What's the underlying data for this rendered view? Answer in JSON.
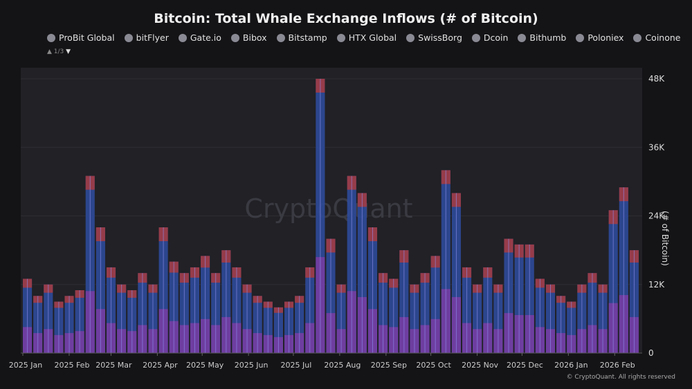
{
  "chart_data": {
    "type": "bar",
    "title": "Bitcoin: Total Whale Exchange Inflows (# of Bitcoin)",
    "ylabel": "(# of Bitcoin)",
    "xlabel": "",
    "ylim": [
      0,
      48000
    ],
    "yticks": [
      "0",
      "12K",
      "24K",
      "36K",
      "48K"
    ],
    "ytick_values": [
      0,
      12000,
      24000,
      36000,
      48000
    ],
    "xticks": [
      "2025 Jan",
      "2025 Feb",
      "2025 Mar",
      "2025 Apr",
      "2025 May",
      "2025 Jun",
      "2025 Jul",
      "2025 Aug",
      "2025 Sep",
      "2025 Oct",
      "2025 Nov",
      "2025 Dec",
      "2026 Jan",
      "2026 Feb"
    ],
    "xtick_dates": [
      "2025-01-01",
      "2025-02-01",
      "2025-03-01",
      "2025-04-01",
      "2025-05-01",
      "2025-06-01",
      "2025-07-01",
      "2025-08-01",
      "2025-09-01",
      "2025-10-01",
      "2025-11-01",
      "2025-12-01",
      "2026-01-01",
      "2026-02-01"
    ],
    "xlim": [
      "2025-01-01",
      "2026-02-18"
    ],
    "grid": true,
    "stacked": true,
    "legend": {
      "position": "top",
      "entries": [
        "ProBit Global",
        "bitFlyer",
        "Gate.io",
        "Bibox",
        "Bitstamp",
        "HTX Global",
        "SwissBorg",
        "Dcoin",
        "Bithumb",
        "Poloniex",
        "Coinone"
      ],
      "page": "1/3"
    },
    "x": [
      "2025-01-01",
      "2025-01-08",
      "2025-01-15",
      "2025-01-22",
      "2025-01-29",
      "2025-02-05",
      "2025-02-12",
      "2025-02-19",
      "2025-02-26",
      "2025-03-05",
      "2025-03-12",
      "2025-03-19",
      "2025-03-26",
      "2025-04-02",
      "2025-04-09",
      "2025-04-16",
      "2025-04-23",
      "2025-04-30",
      "2025-05-07",
      "2025-05-14",
      "2025-05-21",
      "2025-05-28",
      "2025-06-04",
      "2025-06-11",
      "2025-06-18",
      "2025-06-25",
      "2025-07-02",
      "2025-07-09",
      "2025-07-16",
      "2025-07-23",
      "2025-07-30",
      "2025-08-06",
      "2025-08-13",
      "2025-08-20",
      "2025-08-27",
      "2025-09-03",
      "2025-09-10",
      "2025-09-17",
      "2025-09-24",
      "2025-10-01",
      "2025-10-08",
      "2025-10-15",
      "2025-10-22",
      "2025-10-29",
      "2025-11-05",
      "2025-11-12",
      "2025-11-19",
      "2025-11-26",
      "2025-12-03",
      "2025-12-10",
      "2025-12-17",
      "2025-12-24",
      "2025-12-31",
      "2026-01-07",
      "2026-01-14",
      "2026-01-21",
      "2026-01-28",
      "2026-02-04",
      "2026-02-11"
    ],
    "values": [
      13000,
      10000,
      12000,
      9000,
      10000,
      11000,
      31000,
      22000,
      15000,
      12000,
      11000,
      14000,
      12000,
      22000,
      16000,
      14000,
      15000,
      17000,
      14000,
      18000,
      15000,
      12000,
      10000,
      9000,
      8000,
      9000,
      10000,
      15000,
      48000,
      20000,
      12000,
      31000,
      28000,
      22000,
      14000,
      13000,
      18000,
      12000,
      14000,
      17000,
      32000,
      28000,
      15000,
      12000,
      15000,
      12000,
      20000,
      19000,
      19000,
      13000,
      12000,
      10000,
      9000,
      12000,
      14000,
      12000,
      25000,
      29000,
      18000
    ],
    "colors": {
      "primary": "#2e4a9a",
      "secondary": "#8a3aa8",
      "accent": "#b23a3a",
      "highlight": "#8f8ff0"
    }
  },
  "watermark": "CryptoQuant",
  "footer": "© CryptoQuant. All rights reserved"
}
